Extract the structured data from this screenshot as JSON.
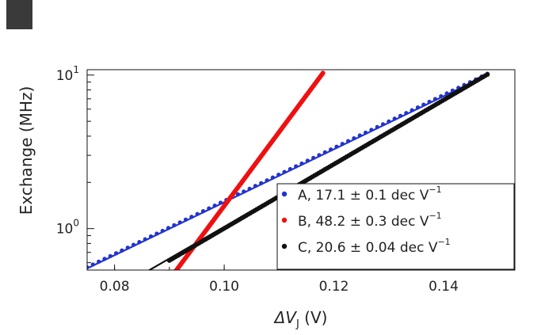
{
  "chart_data": {
    "type": "scatter",
    "title": "",
    "xlabel": "ΔV",
    "xlabel_sub": "J",
    "xlabel_unit": " (V)",
    "ylabel": "Exchange (MHz)",
    "xlim": [
      0.075,
      0.153
    ],
    "ylim_log10": [
      -0.27,
      1.035
    ],
    "yscale": "log",
    "x_ticks": [
      {
        "value": 0.08,
        "label": "0.08"
      },
      {
        "value": 0.1,
        "label": "0.10"
      },
      {
        "value": 0.12,
        "label": "0.12"
      },
      {
        "value": 0.14,
        "label": "0.14"
      }
    ],
    "y_ticks": [
      {
        "value": 1,
        "base": "10",
        "exp": "0"
      },
      {
        "value": 10,
        "base": "10",
        "exp": "1"
      }
    ],
    "grid": false,
    "legend_position": "bottom-right",
    "series": [
      {
        "name": "A, 17.1 ± 0.1 dec V",
        "name_sup": "−1",
        "color": "#2233cc",
        "x_start": 0.075,
        "x_end": 0.148,
        "y_start": 0.56,
        "y_end": 10.2,
        "fit_x": [
          0.075,
          0.148
        ],
        "fit_y": [
          0.55,
          10.0
        ]
      },
      {
        "name": "B, 48.2 ± 0.3 dec V",
        "name_sup": "−1",
        "color": "#ee1111",
        "x_start": 0.091,
        "x_end": 0.118,
        "y_start": 0.52,
        "y_end": 10.3,
        "fit_x": [
          0.091,
          0.118
        ],
        "fit_y": [
          0.51,
          10.6
        ]
      },
      {
        "name": "C, 20.6 ± 0.04 dec V",
        "name_sup": "−1",
        "color": "#111111",
        "x_start": 0.09,
        "x_end": 0.148,
        "y_start": 0.62,
        "y_end": 10.1,
        "fit_x": [
          0.084,
          0.148
        ],
        "fit_y": [
          0.48,
          10.0
        ]
      }
    ]
  }
}
